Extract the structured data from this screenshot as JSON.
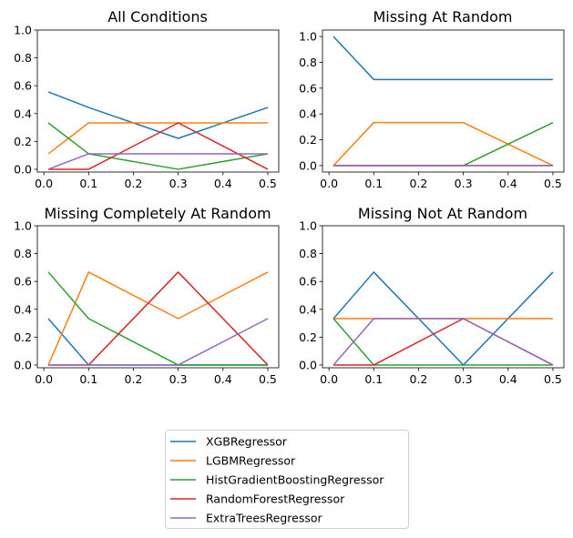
{
  "chart_data": [
    {
      "type": "line",
      "title": "All Conditions",
      "x": [
        0.01,
        0.1,
        0.3,
        0.5
      ],
      "xticks": [
        "0.0",
        "0.1",
        "0.2",
        "0.3",
        "0.4",
        "0.5"
      ],
      "yticks": [
        "0.0",
        "0.2",
        "0.4",
        "0.6",
        "0.8",
        "1.0"
      ],
      "ylim": [
        0,
        1.0
      ],
      "series": [
        {
          "name": "XGBRegressor",
          "values": [
            0.556,
            0.444,
            0.222,
            0.444
          ]
        },
        {
          "name": "LGBMRegressor",
          "values": [
            0.111,
            0.333,
            0.333,
            0.333
          ]
        },
        {
          "name": "HistGradientBoostingRegressor",
          "values": [
            0.333,
            0.111,
            0.0,
            0.111
          ]
        },
        {
          "name": "RandomForestRegressor",
          "values": [
            0.0,
            0.0,
            0.333,
            0.0
          ]
        },
        {
          "name": "ExtraTreesRegressor",
          "values": [
            0.0,
            0.111,
            0.111,
            0.111
          ]
        }
      ]
    },
    {
      "type": "line",
      "title": "Missing At Random",
      "x": [
        0.01,
        0.1,
        0.3,
        0.5
      ],
      "xticks": [
        "0.0",
        "0.1",
        "0.2",
        "0.3",
        "0.4",
        "0.5"
      ],
      "yticks": [
        "0.0",
        "0.2",
        "0.4",
        "0.6",
        "0.8",
        "1.0"
      ],
      "ylim": [
        0,
        1.0
      ],
      "series": [
        {
          "name": "XGBRegressor",
          "values": [
            1.0,
            0.667,
            0.667,
            0.667
          ]
        },
        {
          "name": "LGBMRegressor",
          "values": [
            0.0,
            0.333,
            0.333,
            0.0
          ]
        },
        {
          "name": "HistGradientBoostingRegressor",
          "values": [
            0.0,
            0.0,
            0.0,
            0.333
          ]
        },
        {
          "name": "RandomForestRegressor",
          "values": [
            0.0,
            0.0,
            0.0,
            0.0
          ]
        },
        {
          "name": "ExtraTreesRegressor",
          "values": [
            0.0,
            0.0,
            0.0,
            0.0
          ]
        }
      ]
    },
    {
      "type": "line",
      "title": "Missing Completely At Random",
      "x": [
        0.01,
        0.1,
        0.3,
        0.5
      ],
      "xticks": [
        "0.0",
        "0.1",
        "0.2",
        "0.3",
        "0.4",
        "0.5"
      ],
      "yticks": [
        "0.0",
        "0.2",
        "0.4",
        "0.6",
        "0.8",
        "1.0"
      ],
      "ylim": [
        0,
        1.0
      ],
      "series": [
        {
          "name": "XGBRegressor",
          "values": [
            0.333,
            0.0,
            0.0,
            0.0
          ]
        },
        {
          "name": "LGBMRegressor",
          "values": [
            0.0,
            0.667,
            0.333,
            0.667
          ]
        },
        {
          "name": "HistGradientBoostingRegressor",
          "values": [
            0.667,
            0.333,
            0.0,
            0.0
          ]
        },
        {
          "name": "RandomForestRegressor",
          "values": [
            0.0,
            0.0,
            0.667,
            0.0
          ]
        },
        {
          "name": "ExtraTreesRegressor",
          "values": [
            0.0,
            0.0,
            0.0,
            0.333
          ]
        }
      ]
    },
    {
      "type": "line",
      "title": "Missing Not At Random",
      "x": [
        0.01,
        0.1,
        0.3,
        0.5
      ],
      "xticks": [
        "0.0",
        "0.1",
        "0.2",
        "0.3",
        "0.4",
        "0.5"
      ],
      "yticks": [
        "0.0",
        "0.2",
        "0.4",
        "0.6",
        "0.8",
        "1.0"
      ],
      "ylim": [
        0,
        1.0
      ],
      "series": [
        {
          "name": "XGBRegressor",
          "values": [
            0.333,
            0.667,
            0.0,
            0.667
          ]
        },
        {
          "name": "LGBMRegressor",
          "values": [
            0.333,
            0.333,
            0.333,
            0.333
          ]
        },
        {
          "name": "HistGradientBoostingRegressor",
          "values": [
            0.333,
            0.0,
            0.0,
            0.0
          ]
        },
        {
          "name": "RandomForestRegressor",
          "values": [
            0.0,
            0.0,
            0.333,
            0.0
          ]
        },
        {
          "name": "ExtraTreesRegressor",
          "values": [
            0.0,
            0.333,
            0.333,
            0.0
          ]
        }
      ]
    }
  ],
  "legend": {
    "position": "bottom-center",
    "items": [
      {
        "name": "XGBRegressor",
        "color": "#1f77b4"
      },
      {
        "name": "LGBMRegressor",
        "color": "#ff7f0e"
      },
      {
        "name": "HistGradientBoostingRegressor",
        "color": "#2ca02c"
      },
      {
        "name": "RandomForestRegressor",
        "color": "#d62728"
      },
      {
        "name": "ExtraTreesRegressor",
        "color": "#9467bd"
      }
    ]
  }
}
